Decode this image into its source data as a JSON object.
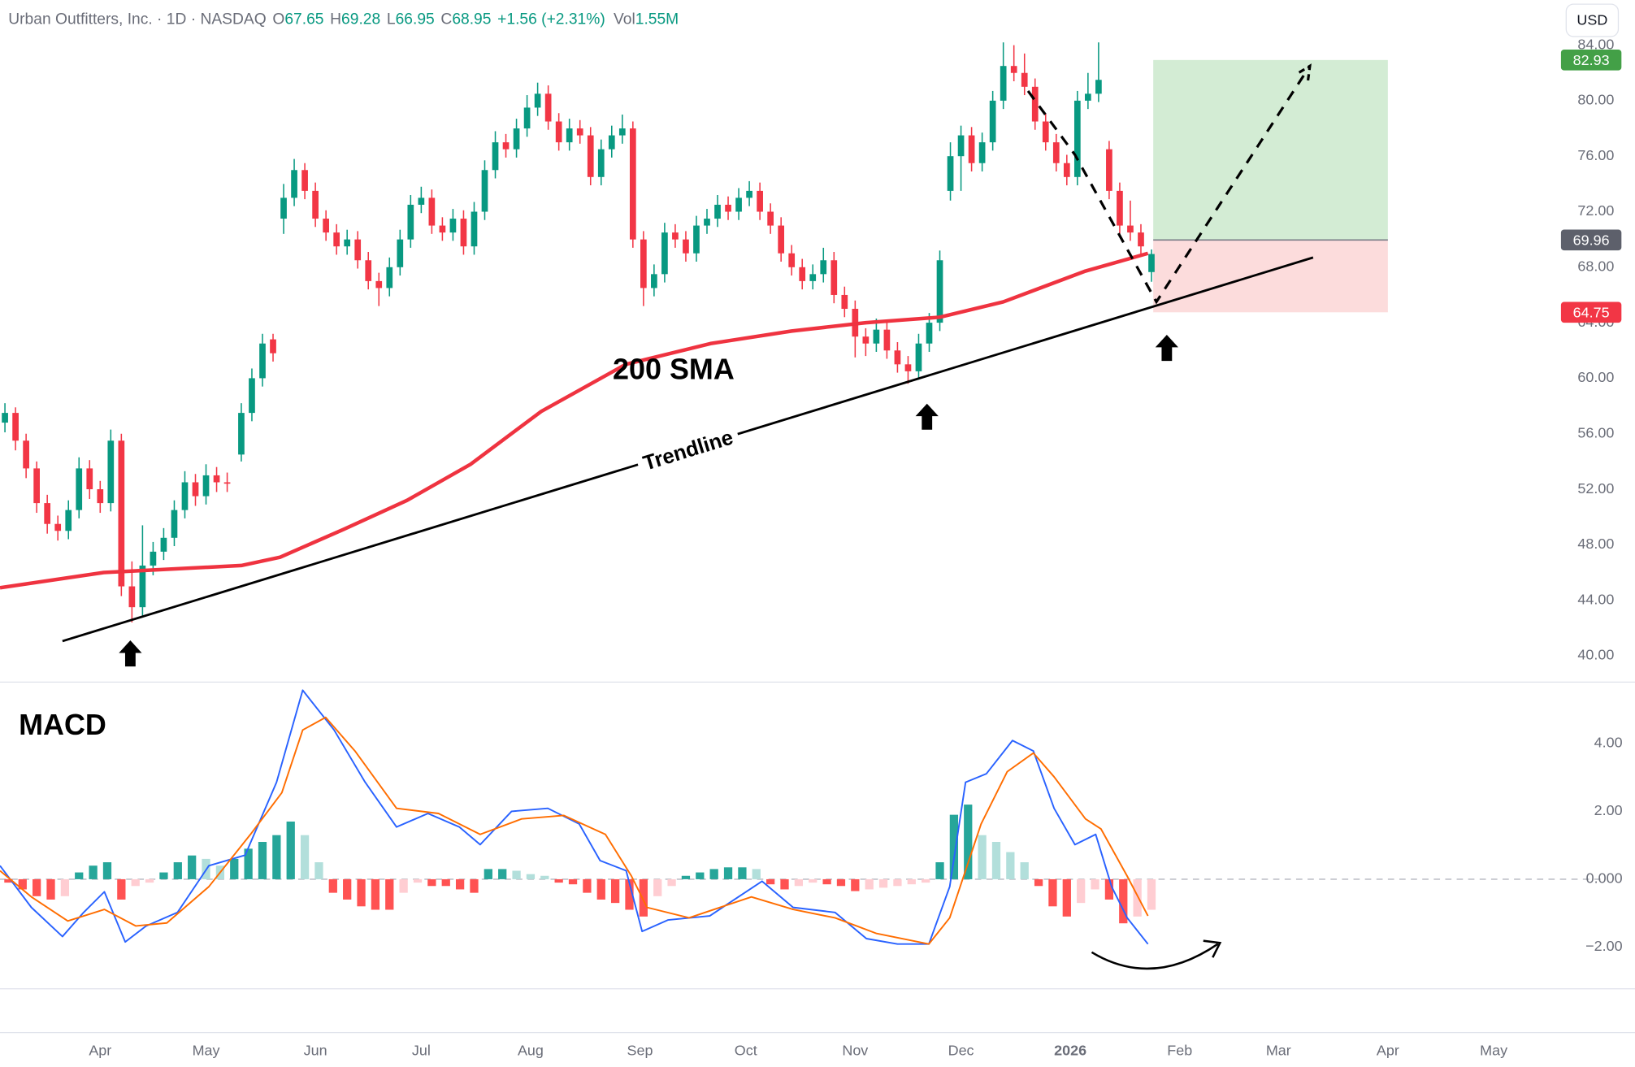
{
  "chart_data": {
    "type": "candlestick",
    "header": {
      "title": "Urban Outfitters, Inc. · 1D · NASDAQ",
      "items": [
        {
          "key": "O",
          "value": "67.65"
        },
        {
          "key": "H",
          "value": "69.28"
        },
        {
          "key": "L",
          "value": "66.95"
        },
        {
          "key": "C",
          "value": "68.95"
        }
      ],
      "change": "+1.56 (+2.31%)",
      "volume": {
        "key": "Vol",
        "value": "1.55M"
      }
    },
    "currency": "USD",
    "xlim": [
      -28.4,
      412
    ],
    "xticks": [
      {
        "value": 0,
        "label": "Apr"
      },
      {
        "value": 30,
        "label": "May"
      },
      {
        "value": 61,
        "label": "Jun"
      },
      {
        "value": 91,
        "label": "Jul"
      },
      {
        "value": 122,
        "label": "Aug"
      },
      {
        "value": 153,
        "label": "Sep"
      },
      {
        "value": 183,
        "label": "Oct"
      },
      {
        "value": 214,
        "label": "Nov"
      },
      {
        "value": 244,
        "label": "Dec"
      },
      {
        "value": 275,
        "label": "2026"
      },
      {
        "value": 306,
        "label": "Feb"
      },
      {
        "value": 334,
        "label": "Mar"
      },
      {
        "value": 365,
        "label": "Apr"
      },
      {
        "value": 395,
        "label": "May"
      }
    ],
    "ylim": [
      38.4,
      85
    ],
    "yticks": [
      {
        "value": 40,
        "label": "40.00"
      },
      {
        "value": 44,
        "label": "44.00"
      },
      {
        "value": 48,
        "label": "48.00"
      },
      {
        "value": 52,
        "label": "52.00"
      },
      {
        "value": 56,
        "label": "56.00"
      },
      {
        "value": 60,
        "label": "60.00"
      },
      {
        "value": 64,
        "label": "64.00"
      },
      {
        "value": 68,
        "label": "68.00"
      },
      {
        "value": 72,
        "label": "72.00"
      },
      {
        "value": 76,
        "label": "76.00"
      },
      {
        "value": 80,
        "label": "80.00"
      },
      {
        "value": 84,
        "label": "84.00"
      }
    ],
    "grid": false,
    "up_color": "#089981",
    "down_color": "#f23645",
    "candles": [
      [
        -27,
        56.8,
        58.2,
        56.1,
        57.5
      ],
      [
        -24,
        57.5,
        57.9,
        54.8,
        55.5
      ],
      [
        -21,
        55.5,
        56.0,
        52.8,
        53.5
      ],
      [
        -18,
        53.5,
        54.0,
        50.3,
        51.0
      ],
      [
        -15,
        51.0,
        51.6,
        48.8,
        49.5
      ],
      [
        -12,
        49.5,
        50.1,
        48.3,
        49.0
      ],
      [
        -9,
        49.0,
        51.2,
        48.4,
        50.5
      ],
      [
        -6,
        50.5,
        54.3,
        49.9,
        53.5
      ],
      [
        -3,
        53.5,
        54.1,
        51.3,
        52.0
      ],
      [
        0,
        52.0,
        52.6,
        50.3,
        51.0
      ],
      [
        3,
        51.0,
        56.3,
        50.4,
        55.5
      ],
      [
        6,
        55.5,
        56.0,
        44.3,
        45.0
      ],
      [
        9,
        45.0,
        46.8,
        42.4,
        43.5
      ],
      [
        12,
        43.5,
        49.4,
        42.8,
        46.5
      ],
      [
        15,
        46.5,
        48.2,
        45.8,
        47.5
      ],
      [
        18,
        47.5,
        49.2,
        46.9,
        48.5
      ],
      [
        21,
        48.5,
        51.2,
        47.9,
        50.5
      ],
      [
        24,
        50.5,
        53.3,
        49.9,
        52.5
      ],
      [
        27,
        52.5,
        53.1,
        50.8,
        51.5
      ],
      [
        30,
        51.5,
        53.8,
        50.9,
        53.0
      ],
      [
        33,
        53.0,
        53.6,
        51.8,
        52.5
      ],
      [
        36,
        52.5,
        53.2,
        51.8,
        52.4
      ],
      [
        40,
        54.5,
        58.2,
        54.0,
        57.5
      ],
      [
        43,
        57.5,
        60.7,
        56.9,
        60.0
      ],
      [
        46,
        60.0,
        63.2,
        59.4,
        62.5
      ],
      [
        49,
        62.8,
        63.2,
        61.2,
        61.8
      ],
      [
        52,
        71.5,
        74.0,
        70.4,
        73.0
      ],
      [
        55,
        73.0,
        75.8,
        72.4,
        75.0
      ],
      [
        58,
        75.0,
        75.5,
        72.9,
        73.5
      ],
      [
        61,
        73.5,
        74.1,
        70.9,
        71.5
      ],
      [
        64,
        71.5,
        72.1,
        69.9,
        70.5
      ],
      [
        67,
        70.5,
        71.1,
        68.9,
        69.5
      ],
      [
        70,
        69.5,
        70.7,
        68.9,
        70.0
      ],
      [
        73,
        70.0,
        70.6,
        67.9,
        68.5
      ],
      [
        76,
        68.5,
        69.1,
        66.4,
        67.0
      ],
      [
        79,
        67.0,
        67.6,
        65.2,
        66.5
      ],
      [
        82,
        66.5,
        68.7,
        65.9,
        68.0
      ],
      [
        85,
        68.0,
        70.7,
        67.4,
        70.0
      ],
      [
        88,
        70.0,
        73.2,
        69.4,
        72.5
      ],
      [
        91,
        72.5,
        73.8,
        71.9,
        73.0
      ],
      [
        94,
        73.0,
        73.6,
        70.4,
        71.0
      ],
      [
        97,
        71.0,
        71.6,
        69.9,
        70.5
      ],
      [
        100,
        70.5,
        72.2,
        69.9,
        71.5
      ],
      [
        103,
        71.5,
        72.1,
        68.9,
        69.5
      ],
      [
        106,
        69.5,
        72.7,
        68.9,
        72.0
      ],
      [
        109,
        72.0,
        75.7,
        71.4,
        75.0
      ],
      [
        112,
        75.0,
        77.8,
        74.4,
        77.0
      ],
      [
        115,
        77.0,
        77.6,
        75.9,
        76.5
      ],
      [
        118,
        76.5,
        78.7,
        75.9,
        78.0
      ],
      [
        121,
        78.0,
        80.4,
        77.4,
        79.5
      ],
      [
        124,
        79.5,
        81.3,
        78.9,
        80.5
      ],
      [
        127,
        80.5,
        81.1,
        77.9,
        78.5
      ],
      [
        130,
        78.5,
        79.1,
        76.4,
        77.0
      ],
      [
        133,
        77.0,
        78.7,
        76.4,
        78.0
      ],
      [
        136,
        78.0,
        78.6,
        76.9,
        77.5
      ],
      [
        139,
        77.5,
        78.1,
        73.9,
        74.5
      ],
      [
        142,
        74.5,
        77.2,
        73.9,
        76.5
      ],
      [
        145,
        76.5,
        78.2,
        75.9,
        77.5
      ],
      [
        148,
        77.5,
        79.0,
        76.9,
        78.0
      ],
      [
        151,
        78.0,
        78.5,
        69.4,
        70.0
      ],
      [
        154,
        70.0,
        70.6,
        65.2,
        66.5
      ],
      [
        157,
        66.5,
        68.2,
        65.9,
        67.5
      ],
      [
        160,
        67.5,
        71.2,
        66.9,
        70.5
      ],
      [
        163,
        70.5,
        71.1,
        69.4,
        70.0
      ],
      [
        166,
        70.0,
        70.6,
        68.4,
        69.0
      ],
      [
        169,
        69.0,
        71.7,
        68.4,
        71.0
      ],
      [
        172,
        71.0,
        72.2,
        70.4,
        71.5
      ],
      [
        175,
        71.5,
        73.2,
        70.9,
        72.5
      ],
      [
        178,
        72.5,
        73.1,
        71.4,
        72.0
      ],
      [
        181,
        72.0,
        73.7,
        71.4,
        73.0
      ],
      [
        184,
        73.0,
        74.2,
        72.4,
        73.5
      ],
      [
        187,
        73.5,
        74.1,
        71.4,
        72.0
      ],
      [
        190,
        72.0,
        72.6,
        70.4,
        71.0
      ],
      [
        193,
        71.0,
        71.6,
        68.4,
        69.0
      ],
      [
        196,
        69.0,
        69.6,
        67.4,
        68.0
      ],
      [
        199,
        68.0,
        68.6,
        66.4,
        67.0
      ],
      [
        202,
        67.0,
        68.2,
        66.4,
        67.5
      ],
      [
        205,
        67.5,
        69.4,
        66.9,
        68.5
      ],
      [
        208,
        68.5,
        69.1,
        65.4,
        66.0
      ],
      [
        211,
        66.0,
        66.6,
        64.4,
        65.0
      ],
      [
        214,
        65.0,
        65.6,
        61.5,
        63.0
      ],
      [
        217,
        63.0,
        63.6,
        61.6,
        62.5
      ],
      [
        220,
        62.5,
        64.3,
        61.9,
        63.5
      ],
      [
        223,
        63.5,
        64.1,
        61.4,
        62.0
      ],
      [
        226,
        62.0,
        62.6,
        60.4,
        61.0
      ],
      [
        229,
        61.0,
        61.6,
        59.6,
        60.5
      ],
      [
        232,
        60.5,
        63.2,
        59.9,
        62.5
      ],
      [
        235,
        62.5,
        64.7,
        61.9,
        64.0
      ],
      [
        238,
        64.0,
        69.2,
        63.4,
        68.5
      ],
      [
        241,
        73.5,
        77.0,
        72.8,
        76.0
      ],
      [
        244,
        76.0,
        78.2,
        73.5,
        77.5
      ],
      [
        247,
        77.5,
        78.1,
        74.9,
        75.5
      ],
      [
        250,
        75.5,
        77.7,
        74.9,
        77.0
      ],
      [
        253,
        77.0,
        80.7,
        76.4,
        80.0
      ],
      [
        256,
        80.0,
        84.2,
        79.4,
        82.5
      ],
      [
        259,
        82.5,
        84.0,
        81.4,
        82.0
      ],
      [
        262,
        82.0,
        83.4,
        80.4,
        81.0
      ],
      [
        265,
        81.0,
        81.6,
        77.9,
        78.5
      ],
      [
        268,
        78.5,
        79.1,
        76.4,
        77.0
      ],
      [
        271,
        77.0,
        77.6,
        74.9,
        75.5
      ],
      [
        274,
        75.5,
        76.1,
        73.9,
        74.5
      ],
      [
        277,
        74.5,
        80.7,
        73.9,
        80.0
      ],
      [
        280,
        80.0,
        82.0,
        79.4,
        80.5
      ],
      [
        283,
        80.5,
        84.2,
        79.9,
        81.5
      ],
      [
        286,
        76.5,
        77.1,
        72.9,
        73.5
      ],
      [
        289,
        73.5,
        74.1,
        70.4,
        71.0
      ],
      [
        292,
        71.0,
        72.8,
        69.9,
        70.5
      ],
      [
        295,
        70.5,
        71.1,
        68.9,
        69.5
      ],
      [
        298,
        67.65,
        69.28,
        66.95,
        68.95
      ]
    ],
    "sma": {
      "name": "200 SMA",
      "color": "#ef3340",
      "x": [
        -28.4,
        1,
        40,
        51,
        69,
        87,
        105,
        125,
        149,
        173,
        196,
        217,
        238,
        256,
        279,
        297
      ],
      "values": [
        44.9,
        46.0,
        46.5,
        47.1,
        49.1,
        51.2,
        53.8,
        57.6,
        61.0,
        62.5,
        63.4,
        64.0,
        64.4,
        65.5,
        67.7,
        69.0
      ]
    },
    "trendline": {
      "name": "Trendline",
      "color": "#000000",
      "x": [
        -10.7,
        343.8
      ],
      "values": [
        41.05,
        68.7
      ]
    },
    "projection": {
      "color": "#000000",
      "x": [
        263,
        276.3,
        299.4,
        342.9
      ],
      "values": [
        80.7,
        76.1,
        65.5,
        82.5
      ]
    },
    "position": {
      "x": [
        298.5,
        365
      ],
      "target": 82.93,
      "entry": 69.96,
      "stop": 64.75,
      "target_color": "#43a047",
      "entry_color": "#5d606b",
      "stop_color": "#f23645",
      "profit_fill": "#d3ecd4",
      "loss_fill": "#fcdcdc"
    },
    "macd": {
      "name": "MACD",
      "ylim": [
        -3.23,
        5.78
      ],
      "yticks": [
        {
          "value": -2,
          "label": "−2.00"
        },
        {
          "value": 0,
          "label": "0.000"
        },
        {
          "value": 2,
          "label": "2.00"
        },
        {
          "value": 4,
          "label": "4.00"
        }
      ],
      "series": [
        {
          "color": "#2962ff",
          "x": [
            -28.4,
            -19.5,
            -10.7,
            -4.7,
            1.2,
            7.1,
            13,
            21.9,
            30.8,
            41.1,
            50,
            57.4,
            66.3,
            75.1,
            84,
            92.9,
            101.8,
            107.7,
            116.6,
            126.9,
            135.8,
            141.7,
            149.1,
            153.6,
            161,
            172.8,
            187.6,
            196.4,
            208.3,
            217.2,
            226,
            234.9,
            240.8,
            245.3,
            251.2,
            258.6,
            264.5,
            270.4,
            276.3,
            282.2,
            286.7,
            291.1,
            297
          ],
          "values": [
            0.4,
            -0.83,
            -1.69,
            -0.98,
            -0.37,
            -1.85,
            -1.38,
            -0.98,
            0.4,
            0.71,
            2.86,
            5.57,
            4.4,
            2.86,
            1.54,
            1.94,
            1.54,
            1.02,
            2.0,
            2.09,
            1.63,
            0.55,
            0.25,
            -1.54,
            -1.2,
            -1.08,
            -0.06,
            -0.83,
            -0.98,
            -1.75,
            -1.91,
            -1.91,
            -0.22,
            2.86,
            3.11,
            4.09,
            3.78,
            2.09,
            1.02,
            1.32,
            -0.22,
            -1.14,
            -1.91
          ]
        },
        {
          "color": "#ff6d00",
          "x": [
            -28.4,
            -19.5,
            -9.2,
            1.2,
            10.1,
            18.9,
            30.8,
            42.6,
            51.5,
            57.4,
            63.9,
            72.2,
            84,
            95.9,
            107.7,
            119.5,
            131.4,
            143.2,
            150.6,
            155,
            166.9,
            184.6,
            196.4,
            208.3,
            220.1,
            234.9,
            240.8,
            249.7,
            257.1,
            264.5,
            270.4,
            279.3,
            283.7,
            291.1,
            297
          ],
          "values": [
            0.25,
            -0.52,
            -1.23,
            -0.89,
            -1.38,
            -1.29,
            -0.22,
            1.32,
            2.55,
            4.4,
            4.77,
            3.78,
            2.09,
            1.94,
            1.32,
            1.78,
            1.88,
            1.32,
            0.09,
            -0.83,
            -1.14,
            -0.52,
            -0.89,
            -1.14,
            -1.6,
            -1.91,
            -1.14,
            1.63,
            3.17,
            3.72,
            3.02,
            1.78,
            1.48,
            0.09,
            -1.08
          ]
        }
      ],
      "histogram": {
        "colors": [
          "#26a69a",
          "#b2dfdb",
          "#ff5252",
          "#ffcdd2"
        ],
        "x": [
          -26,
          -22,
          -18,
          -14,
          -10,
          -6,
          -2,
          2,
          6,
          10,
          14,
          18,
          22,
          26,
          30,
          34,
          38,
          42,
          46,
          50,
          54,
          58,
          62,
          66,
          70,
          74,
          78,
          82,
          86,
          90,
          94,
          98,
          102,
          106,
          110,
          114,
          118,
          122,
          126,
          130,
          134,
          138,
          142,
          146,
          150,
          154,
          158,
          162,
          166,
          170,
          174,
          178,
          182,
          186,
          190,
          194,
          198,
          202,
          206,
          210,
          214,
          218,
          222,
          226,
          230,
          234,
          238,
          242,
          246,
          250,
          254,
          258,
          262,
          266,
          270,
          274,
          278,
          282,
          286,
          290,
          294,
          298
        ],
        "values": [
          -0.1,
          -0.3,
          -0.5,
          -0.6,
          -0.5,
          0.2,
          0.4,
          0.5,
          -0.6,
          -0.2,
          -0.1,
          0.2,
          0.5,
          0.7,
          0.6,
          0.4,
          0.6,
          0.9,
          1.1,
          1.3,
          1.7,
          1.3,
          0.5,
          -0.4,
          -0.6,
          -0.8,
          -0.9,
          -0.9,
          -0.4,
          -0.1,
          -0.2,
          -0.2,
          -0.3,
          -0.4,
          0.3,
          0.3,
          0.25,
          0.15,
          0.1,
          -0.1,
          -0.15,
          -0.4,
          -0.6,
          -0.7,
          -0.9,
          -1.1,
          -0.5,
          -0.2,
          0.1,
          0.2,
          0.3,
          0.35,
          0.35,
          0.3,
          -0.15,
          -0.3,
          -0.2,
          -0.1,
          -0.15,
          -0.2,
          -0.35,
          -0.3,
          -0.25,
          -0.2,
          -0.15,
          -0.1,
          0.5,
          1.9,
          2.2,
          1.3,
          1.1,
          0.8,
          0.5,
          -0.2,
          -0.8,
          -1.1,
          -0.7,
          -0.3,
          -0.6,
          -1.3,
          -1.1,
          -0.9
        ]
      }
    }
  }
}
